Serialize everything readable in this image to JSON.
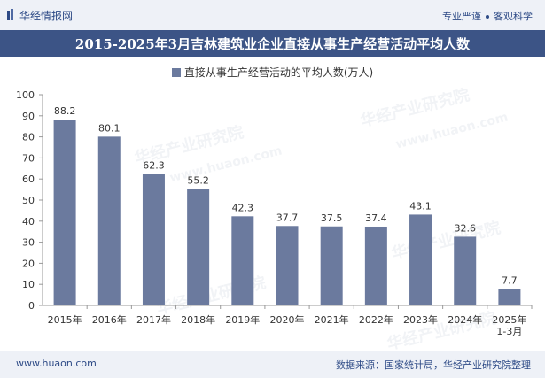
{
  "header": {
    "brand": "华经情报网",
    "tag1": "专业严谨",
    "tag2": "客观科学"
  },
  "title": "2015-2025年3月吉林建筑业企业直接从事生产经营活动平均人数",
  "watermark": {
    "text1": "华经产业研究院",
    "text2": "www.huaon.com"
  },
  "footer": {
    "website": "www.huaon.com",
    "source": "数据来源：国家统计局，华经产业研究院整理"
  },
  "colors": {
    "bar": "#6b7a9e",
    "title_bg": "#3c5486",
    "header_bg": "#eef1f7",
    "accent_text": "#2d4a86"
  },
  "chart_data": {
    "type": "bar",
    "categories": [
      "2015年",
      "2016年",
      "2017年",
      "2018年",
      "2019年",
      "2020年",
      "2021年",
      "2022年",
      "2023年",
      "2024年",
      "2025年\n1-3月"
    ],
    "series": [
      {
        "name": "直接从事生产经营活动的平均人数(万人)",
        "values": [
          88.2,
          80.1,
          62.3,
          55.2,
          42.3,
          37.7,
          37.5,
          37.4,
          43.1,
          32.6,
          7.7
        ]
      }
    ],
    "ylim": [
      0,
      100
    ],
    "yticks": [
      0,
      10,
      20,
      30,
      40,
      50,
      60,
      70,
      80,
      90,
      100
    ],
    "grid": false,
    "legend": "top-center"
  }
}
